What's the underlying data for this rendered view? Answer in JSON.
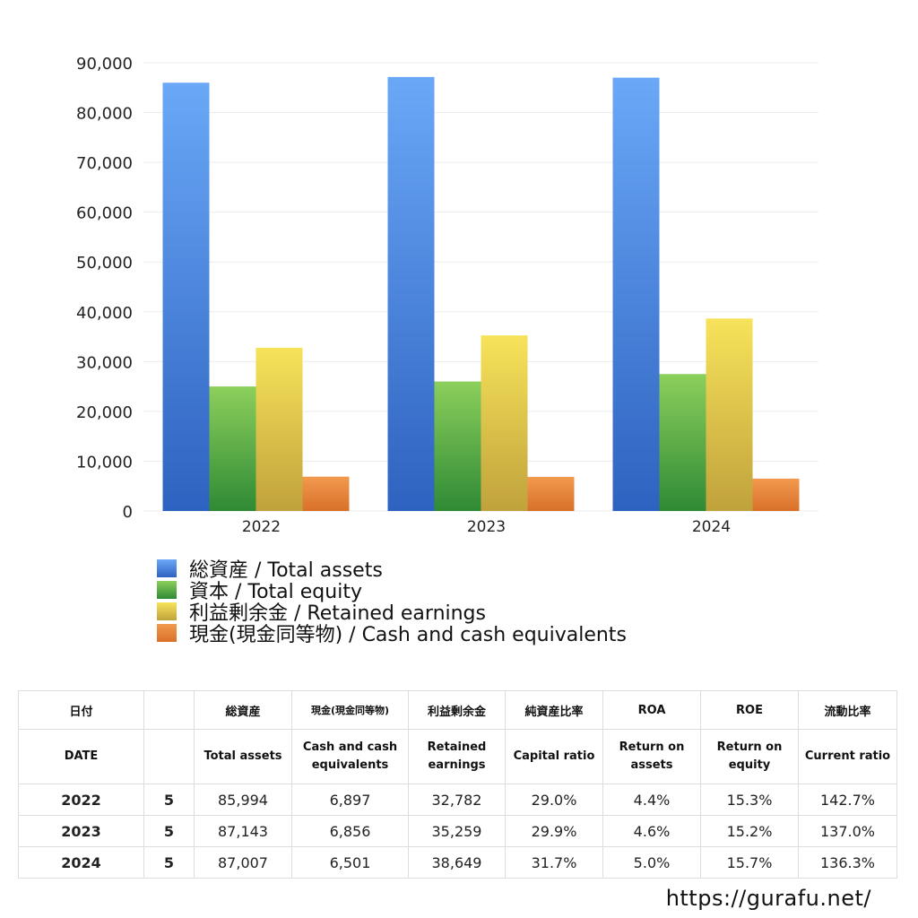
{
  "chart_data": {
    "type": "bar",
    "categories": [
      "2022",
      "2023",
      "2024"
    ],
    "series": [
      {
        "name": "総資産 / Total assets",
        "values": [
          85994,
          87143,
          87007
        ],
        "color_top": "#6aa8f7",
        "color_bottom": "#2e62c0"
      },
      {
        "name": "資本 / Total equity",
        "values": [
          25000,
          26000,
          27500
        ],
        "color_top": "#8ccf5c",
        "color_bottom": "#2f8a35"
      },
      {
        "name": "利益剰余金 / Retained earnings",
        "values": [
          32782,
          35259,
          38649
        ],
        "color_top": "#f7e35a",
        "color_bottom": "#c0a23c"
      },
      {
        "name": "現金(現金同等物) / Cash and cash equivalents",
        "values": [
          6897,
          6856,
          6501
        ],
        "color_top": "#f29a4f",
        "color_bottom": "#d9702a"
      }
    ],
    "yticks": [
      "0",
      "10,000",
      "20,000",
      "30,000",
      "40,000",
      "50,000",
      "60,000",
      "70,000",
      "80,000",
      "90,000"
    ],
    "ylim": [
      0,
      90000
    ],
    "grid": true,
    "legend_position": "bottom-left"
  },
  "table": {
    "header_ja": [
      "日付",
      "",
      "総資産",
      "現金(現金同等物)",
      "利益剰余金",
      "純資産比率",
      "ROA",
      "ROE",
      "流動比率"
    ],
    "header_en": [
      "DATE",
      "",
      "Total assets",
      "Cash and cash equivalents",
      "Retained earnings",
      "Capital ratio",
      "Return on assets",
      "Return on equity",
      "Current ratio"
    ],
    "rows": [
      {
        "year": "2022",
        "month": "5",
        "total_assets": "85,994",
        "cash": "6,897",
        "retained": "32,782",
        "capital_ratio": "29.0%",
        "roa": "4.4%",
        "roe": "15.3%",
        "current_ratio": "142.7%"
      },
      {
        "year": "2023",
        "month": "5",
        "total_assets": "87,143",
        "cash": "6,856",
        "retained": "35,259",
        "capital_ratio": "29.9%",
        "roa": "4.6%",
        "roe": "15.2%",
        "current_ratio": "137.0%"
      },
      {
        "year": "2024",
        "month": "5",
        "total_assets": "87,007",
        "cash": "6,501",
        "retained": "38,649",
        "capital_ratio": "31.7%",
        "roa": "5.0%",
        "roe": "15.7%",
        "current_ratio": "136.3%"
      }
    ]
  },
  "footer": {
    "url": "https://gurafu.net/"
  }
}
